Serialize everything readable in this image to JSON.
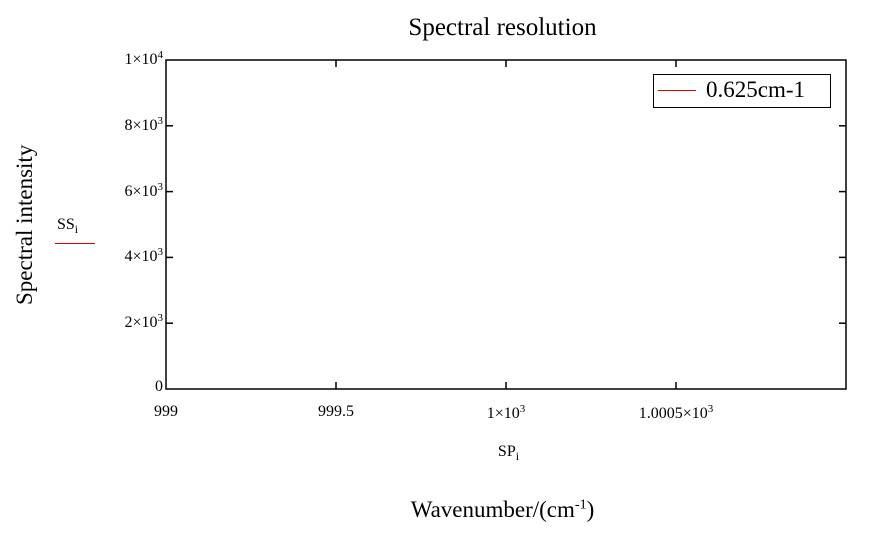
{
  "chart_data": {
    "type": "line",
    "title": "Spectral resolution",
    "ylabel": "Spectral intensity",
    "xlabel": {
      "text": "Wavenumber/(cm",
      "sup": "-1",
      "tail": ")"
    },
    "y_variable": {
      "base": "SS",
      "sub": "i"
    },
    "x_variable": {
      "base": "SP",
      "sub": "i"
    },
    "xlim": [
      999,
      1001
    ],
    "ylim": [
      0,
      10000
    ],
    "x_ticks": [
      {
        "value": 999,
        "base": "999",
        "exp": ""
      },
      {
        "value": 999.5,
        "base": "999.5",
        "exp": ""
      },
      {
        "value": 1000,
        "base": "1×10",
        "exp": "3"
      },
      {
        "value": 1000.5,
        "base": "1.0005×10",
        "exp": "3"
      }
    ],
    "y_ticks": [
      {
        "value": 0,
        "base": "0",
        "exp": ""
      },
      {
        "value": 2000,
        "base": "2×10",
        "exp": "3"
      },
      {
        "value": 4000,
        "base": "4×10",
        "exp": "3"
      },
      {
        "value": 6000,
        "base": "6×10",
        "exp": "3"
      },
      {
        "value": 8000,
        "base": "8×10",
        "exp": "3"
      },
      {
        "value": 10000,
        "base": "1×10",
        "exp": "4"
      }
    ],
    "series": [
      {
        "name": "0.625cm-1",
        "color": "#e00000",
        "x": [],
        "y": []
      }
    ],
    "legend": "top-right",
    "grid": false
  }
}
